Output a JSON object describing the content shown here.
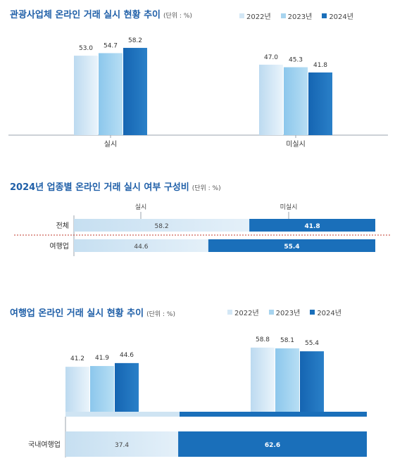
{
  "colors": {
    "c2022": "#d3e7f5",
    "c2023": "#a7d4ef",
    "c2024": "#1a6fba",
    "stack_light": "#cfe4f3",
    "stack_dark": "#1a6fba",
    "separator": "#c0392b"
  },
  "charts": {
    "c1": {
      "title": "관광사업체 온라인 거래 실시 현황 추이",
      "unit": "(단위 : %)"
    },
    "c2": {
      "title": "2024년 업종별 온라인 거래 실시 여부 구성비",
      "unit": "(단위 : %)"
    },
    "c3": {
      "title": "여행업 온라인 거래 실시 현황 추이",
      "unit": "(단위 : %)"
    }
  },
  "chart_data": [
    {
      "type": "bar",
      "title": "관광사업체 온라인 거래 실시 현황 추이",
      "categories": [
        "실시",
        "미실시"
      ],
      "series": [
        {
          "name": "2022년",
          "values": [
            53.0,
            47.0
          ]
        },
        {
          "name": "2023년",
          "values": [
            54.7,
            45.3
          ]
        },
        {
          "name": "2024년",
          "values": [
            58.2,
            41.8
          ]
        }
      ],
      "ylim": [
        0,
        70
      ]
    },
    {
      "type": "bar",
      "title": "2024년 업종별 온라인 거래 실시 여부 구성비",
      "stacked_horizontal": true,
      "segment_labels": [
        "실시",
        "미실시"
      ],
      "categories": [
        "전체",
        "여행업"
      ],
      "values": [
        [
          58.2,
          41.8
        ],
        [
          44.6,
          55.4
        ]
      ]
    },
    {
      "type": "bar",
      "title": "여행업 온라인 거래 실시 현황 추이",
      "series": [
        {
          "name": "2022년",
          "values": [
            41.2,
            58.8
          ]
        },
        {
          "name": "2023년",
          "values": [
            41.9,
            58.1
          ]
        },
        {
          "name": "2024년",
          "values": [
            44.6,
            55.4
          ]
        }
      ],
      "stack_row": {
        "category": "국내여행업",
        "values": [
          37.4,
          62.6
        ]
      },
      "ylim": [
        0,
        70
      ]
    }
  ]
}
